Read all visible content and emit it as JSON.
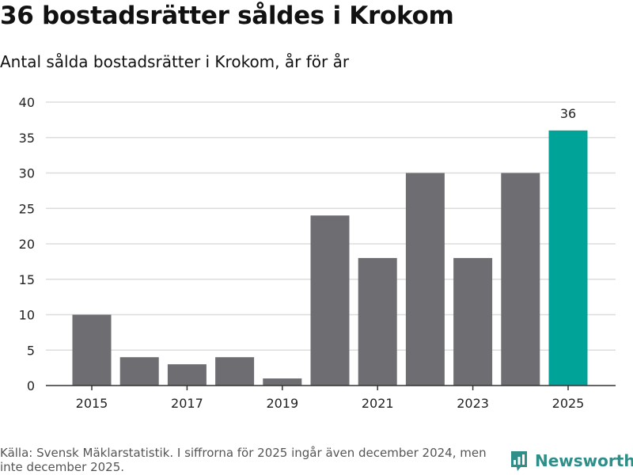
{
  "title": "36 bostadsrätter såldes i Krokom",
  "subtitle": "Antal sålda bostadsrätter i Krokom, år för år",
  "source": "Källa: Svensk Mäklarstatistik. I siffrorna för 2025 ingår även december 2024, men inte december 2025.",
  "brand": {
    "name": "Newsworthy",
    "icon": "newsworthy-logo-icon"
  },
  "colors": {
    "bar": "#6e6d72",
    "highlight": "#00a398",
    "grid": "#dddddd",
    "axis": "#333333",
    "brand": "#2f8f88"
  },
  "chart_data": {
    "type": "bar",
    "title": "36 bostadsrätter såldes i Krokom",
    "subtitle": "Antal sålda bostadsrätter i Krokom, år för år",
    "xlabel": "",
    "ylabel": "",
    "categories": [
      "2015",
      "2016",
      "2017",
      "2018",
      "2019",
      "2020",
      "2021",
      "2022",
      "2023",
      "2024",
      "2025"
    ],
    "values": [
      10,
      4,
      3,
      4,
      1,
      24,
      18,
      30,
      18,
      30,
      36
    ],
    "highlight_index": 10,
    "data_labels": [
      {
        "index": 10,
        "text": "36"
      }
    ],
    "x_tick_labels": [
      "2015",
      "2017",
      "2019",
      "2021",
      "2023",
      "2025"
    ],
    "y_ticks": [
      0,
      5,
      10,
      15,
      20,
      25,
      30,
      35,
      40
    ],
    "ylim": [
      0,
      40
    ],
    "grid": true,
    "legend": "none"
  }
}
